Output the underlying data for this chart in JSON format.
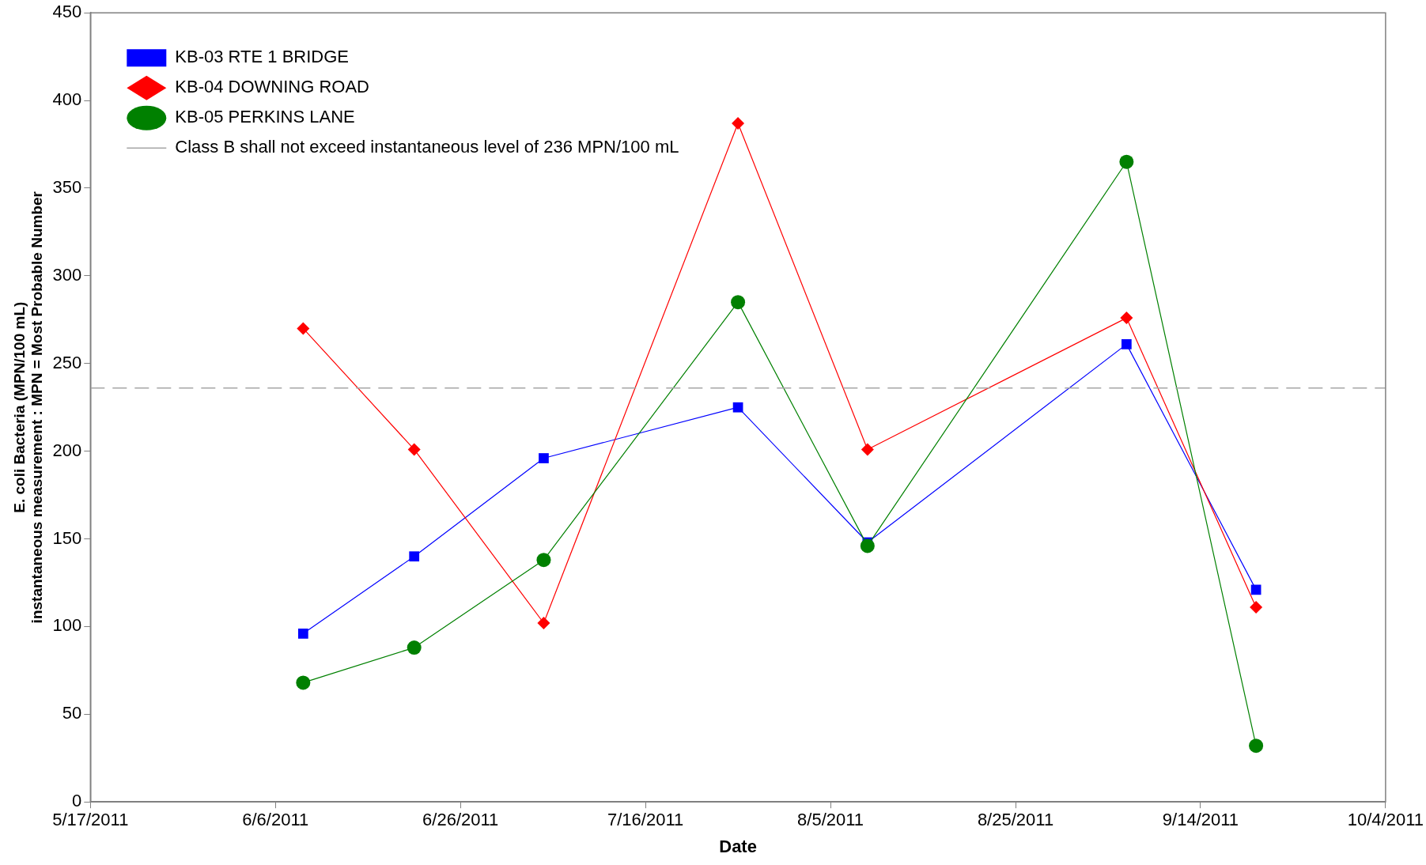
{
  "chart_data": {
    "type": "line",
    "xlabel": "Date",
    "ylabel": [
      "E. coli Bacteria (MPN/100 mL)",
      "instantaneous measurement : MPN = Most Probable Number"
    ],
    "x": [
      "2011-06-09",
      "2011-06-21",
      "2011-07-05",
      "2011-07-26",
      "2011-08-09",
      "2011-09-06",
      "2011-09-20"
    ],
    "series": [
      {
        "name": "KB-03 RTE 1 BRIDGE",
        "color": "#0000ff",
        "marker": "square",
        "values": [
          96,
          140,
          196,
          225,
          148,
          261,
          121
        ]
      },
      {
        "name": "KB-04 DOWNING ROAD",
        "color": "#ff0000",
        "marker": "diamond",
        "values": [
          270,
          201,
          102,
          387,
          201,
          276,
          111
        ]
      },
      {
        "name": "KB-05 PERKINS LANE",
        "color": "#008000",
        "marker": "circle",
        "values": [
          68,
          88,
          138,
          285,
          146,
          365,
          32
        ]
      }
    ],
    "ref_lines": [
      {
        "axis": "y",
        "value": 236,
        "label": "Class B shall not exceed instantaneous level of 236 MPN/100 mL",
        "color": "#a6a6a6",
        "line_style": "dashed"
      }
    ],
    "xlim": [
      "2011-05-17",
      "2011-10-04"
    ],
    "xticks": [
      {
        "value": "2011-05-17",
        "label": "5/17/2011"
      },
      {
        "value": "2011-06-06",
        "label": "6/6/2011"
      },
      {
        "value": "2011-06-26",
        "label": "6/26/2011"
      },
      {
        "value": "2011-07-16",
        "label": "7/16/2011"
      },
      {
        "value": "2011-08-05",
        "label": "8/5/2011"
      },
      {
        "value": "2011-08-25",
        "label": "8/25/2011"
      },
      {
        "value": "2011-09-14",
        "label": "9/14/2011"
      },
      {
        "value": "2011-10-04",
        "label": "10/4/2011"
      }
    ],
    "ylim": [
      0,
      450
    ],
    "yticks": [
      0,
      50,
      100,
      150,
      200,
      250,
      300,
      350,
      400,
      450
    ],
    "grid": false,
    "legend": "top left",
    "line_style": "solid"
  }
}
